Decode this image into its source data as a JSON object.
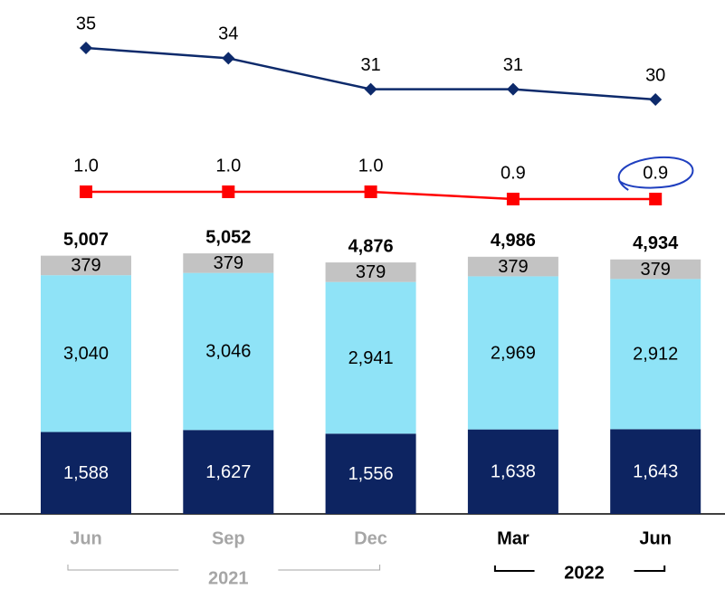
{
  "chart_data": {
    "type": "bar",
    "stacked": true,
    "categories": [
      "Jun",
      "Sep",
      "Dec",
      "Mar",
      "Jun"
    ],
    "category_colors": [
      "#a6a6a6",
      "#a6a6a6",
      "#a6a6a6",
      "#000000",
      "#000000"
    ],
    "groups": [
      {
        "label": "2021",
        "size": 3,
        "color": "#a6a6a6"
      },
      {
        "label": "2022",
        "size": 2,
        "color": "#000000"
      }
    ],
    "series": [
      {
        "color": "#0d2461",
        "label_color": "#ffffff",
        "values": [
          1588,
          1627,
          1556,
          1638,
          1643
        ],
        "value_labels": [
          "1,588",
          "1,627",
          "1,556",
          "1,638",
          "1,643"
        ]
      },
      {
        "color": "#8fe3f7",
        "label_color": "#000000",
        "values": [
          3040,
          3046,
          2941,
          2969,
          2912
        ],
        "value_labels": [
          "3,040",
          "3,046",
          "2,941",
          "2,969",
          "2,912"
        ]
      },
      {
        "color": "#c3c3c3",
        "label_color": "#000000",
        "values": [
          379,
          379,
          379,
          379,
          379
        ]
      }
    ],
    "totals": [
      5007,
      5052,
      4876,
      4986,
      4934
    ],
    "total_labels": [
      "5,007",
      "5,052",
      "4,876",
      "4,986",
      "4,934"
    ],
    "lines": [
      {
        "color": "#0d2a6b",
        "marker": "diamond",
        "values": [
          35,
          34,
          31,
          31,
          30
        ]
      },
      {
        "color": "#ff0000",
        "marker": "square",
        "values": [
          1.0,
          1.0,
          1.0,
          0.9,
          0.9
        ],
        "value_labels": [
          "1.0",
          "1.0",
          "1.0",
          "0.9",
          "0.9"
        ]
      }
    ]
  }
}
